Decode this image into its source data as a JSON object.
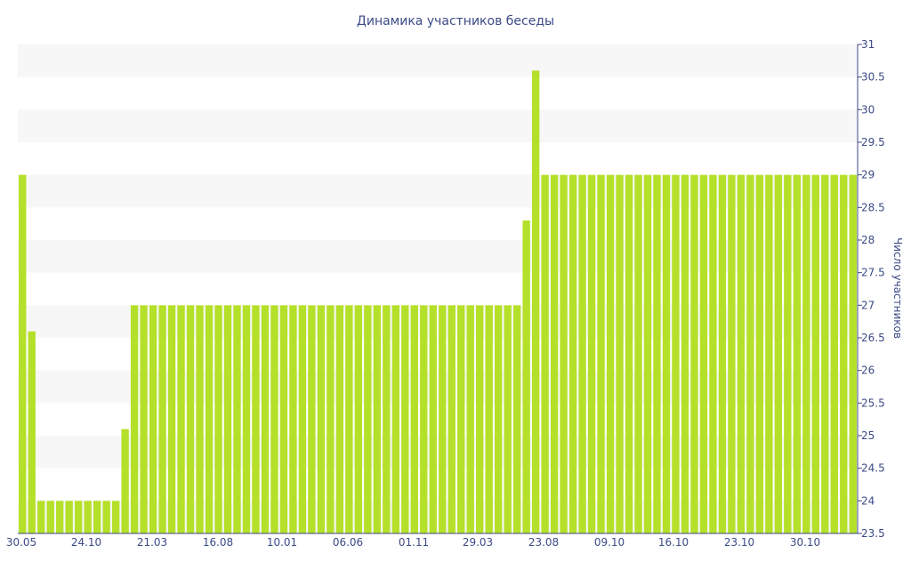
{
  "chart_data": {
    "type": "bar",
    "title": "Динамика участников беседы",
    "xlabel": "",
    "ylabel": "Число участников",
    "ylim": [
      23.5,
      31
    ],
    "yticks": [
      23.5,
      24,
      24.5,
      25,
      25.5,
      26,
      26.5,
      27,
      27.5,
      28,
      28.5,
      29,
      29.5,
      30,
      30.5,
      31
    ],
    "y_axis_side": "right",
    "grid": "alternating horizontal bands",
    "x_tick_labels": [
      "30.05",
      "24.10",
      "21.03",
      "16.08",
      "10.01",
      "06.06",
      "01.11",
      "29.03",
      "23.08",
      "09.10",
      "16.10",
      "23.10",
      "30.10"
    ],
    "bar_color": "#b5e02a",
    "text_color": "#3c4a86",
    "band_color": "#f7f7f7",
    "values": [
      29,
      26.6,
      24,
      24,
      24,
      24,
      24,
      24,
      24,
      24,
      24,
      25.1,
      27,
      27,
      27,
      27,
      27,
      27,
      27,
      27,
      27,
      27,
      27,
      27,
      27,
      27,
      27,
      27,
      27,
      27,
      27,
      27,
      27,
      27,
      27,
      27,
      27,
      27,
      27,
      27,
      27,
      27,
      27,
      27,
      27,
      27,
      27,
      27,
      27,
      27,
      27,
      27,
      27,
      27,
      28.3,
      30.6,
      29,
      29,
      29,
      29,
      29,
      29,
      29,
      29,
      29,
      29,
      29,
      29,
      29,
      29,
      29,
      29,
      29,
      29,
      29,
      29,
      29,
      29,
      29,
      29,
      29,
      29,
      29,
      29,
      29,
      29,
      29,
      29,
      29,
      29
    ]
  }
}
